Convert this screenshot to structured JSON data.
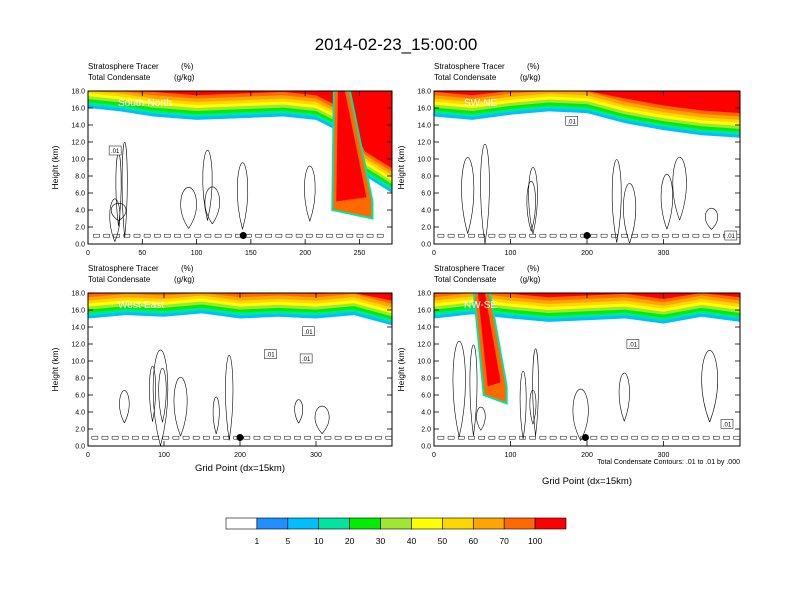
{
  "figure_title": "2014-02-23_15:00:00",
  "colorbar": {
    "levels": [
      "1",
      "5",
      "10",
      "20",
      "30",
      "40",
      "50",
      "60",
      "70",
      "100"
    ],
    "colors": [
      "#ffffff",
      "#1e90ff",
      "#00bfff",
      "#00e5a0",
      "#00ee00",
      "#a0e632",
      "#ffff00",
      "#ffd700",
      "#ffa500",
      "#ff6a00",
      "#ff0000"
    ]
  },
  "contour_info": "Total Condensate Contours: .01 to .01 by .000",
  "chart_data": [
    {
      "type": "heatmap",
      "panel": "South-North",
      "title_left_1": "Stratosphere Tracer",
      "units_1": "(%)",
      "title_left_2": "Total Condensate",
      "units_2": "(g/kg)",
      "ylabel": "Height (km)",
      "xlabel": "",
      "ylim": [
        0,
        18
      ],
      "xlim": [
        0,
        280
      ],
      "yticks": [
        "0.0",
        "2.0",
        "4.0",
        "6.0",
        "8.0",
        "10.0",
        "12.0",
        "14.0",
        "16.0",
        "18.0"
      ],
      "xticks": [
        0,
        50,
        100,
        150,
        200,
        250
      ],
      "xtick_labels": [
        "0",
        "50",
        "100",
        "150",
        "200",
        "250"
      ],
      "surface_x": [
        0,
        30,
        60,
        100,
        140,
        180,
        210,
        235,
        255,
        280
      ],
      "surface_top": [
        16.0,
        15.6,
        15.0,
        14.6,
        14.8,
        15.0,
        14.6,
        13.0,
        8.0,
        6.0
      ],
      "intrusion": {
        "x_top": 232,
        "x_bottom_left": 225,
        "x_bottom_right": 262,
        "bottom": 3.0
      },
      "contour_labels": [
        {
          "text": ".01",
          "x": 25,
          "y": 11.0
        }
      ],
      "marker": {
        "x": 143,
        "y": 1.0
      }
    },
    {
      "type": "heatmap",
      "panel": "SW-NE",
      "title_left_1": "Stratosphere Tracer",
      "units_1": "(%)",
      "title_left_2": "Total Condensate",
      "units_2": "(g/kg)",
      "ylabel": "Height (km)",
      "xlabel": "",
      "ylim": [
        0,
        18
      ],
      "xlim": [
        0,
        400
      ],
      "yticks": [
        "0.0",
        "2.0",
        "4.0",
        "6.0",
        "8.0",
        "10.0",
        "12.0",
        "14.0",
        "16.0",
        "18.0"
      ],
      "xticks": [
        0,
        100,
        200,
        300
      ],
      "xtick_labels": [
        "0",
        "100",
        "200",
        "300"
      ],
      "surface_x": [
        0,
        50,
        100,
        150,
        200,
        250,
        300,
        350,
        400
      ],
      "surface_top": [
        15.0,
        14.6,
        15.2,
        15.6,
        15.4,
        14.2,
        13.4,
        12.8,
        12.5
      ],
      "contour_labels": [
        {
          "text": ".01",
          "x": 180,
          "y": 14.5
        },
        {
          "text": ".01",
          "x": 388,
          "y": 1.0
        }
      ],
      "marker": {
        "x": 200,
        "y": 1.0
      }
    },
    {
      "type": "heatmap",
      "panel": "West-East",
      "title_left_1": "Stratosphere Tracer",
      "units_1": "(%)",
      "title_left_2": "Total Condensate",
      "units_2": "(g/kg)",
      "ylabel": "Height (km)",
      "xlabel": "Grid Point (dx=15km)",
      "ylim": [
        0,
        18
      ],
      "xlim": [
        0,
        400
      ],
      "yticks": [
        "0.0",
        "2.0",
        "4.0",
        "6.0",
        "8.0",
        "10.0",
        "12.0",
        "14.0",
        "16.0",
        "18.0"
      ],
      "xticks": [
        0,
        100,
        200,
        300
      ],
      "xtick_labels": [
        "0",
        "100",
        "200",
        "300"
      ],
      "surface_x": [
        0,
        50,
        100,
        150,
        200,
        250,
        300,
        350,
        400
      ],
      "surface_top": [
        15.0,
        15.4,
        15.2,
        15.6,
        15.0,
        15.2,
        15.0,
        15.4,
        14.2
      ],
      "contour_labels": [
        {
          "text": ".01",
          "x": 290,
          "y": 13.5
        },
        {
          "text": ".01",
          "x": 240,
          "y": 10.8
        },
        {
          "text": ".01",
          "x": 287,
          "y": 10.3
        }
      ],
      "marker": {
        "x": 200,
        "y": 1.0
      }
    },
    {
      "type": "heatmap",
      "panel": "NW-SE",
      "title_left_1": "Stratosphere Tracer",
      "units_1": "(%)",
      "title_left_2": "Total Condensate",
      "units_2": "(g/kg)",
      "ylabel": "Height (km)",
      "xlabel": "Grid Point (dx=15km)",
      "ylim": [
        0,
        18
      ],
      "xlim": [
        0,
        400
      ],
      "yticks": [
        "0.0",
        "2.0",
        "4.0",
        "6.0",
        "8.0",
        "10.0",
        "12.0",
        "14.0",
        "16.0",
        "18.0"
      ],
      "xticks": [
        0,
        100,
        200,
        300
      ],
      "xtick_labels": [
        "0",
        "100",
        "200",
        "300"
      ],
      "surface_x": [
        0,
        50,
        100,
        150,
        200,
        250,
        300,
        350,
        400
      ],
      "surface_top": [
        15.0,
        15.5,
        15.0,
        14.6,
        14.8,
        15.0,
        14.4,
        15.2,
        14.6
      ],
      "intrusion": {
        "x_top": 60,
        "x_bottom_left": 65,
        "x_bottom_right": 95,
        "bottom": 5.0
      },
      "contour_labels": [
        {
          "text": ".01",
          "x": 260,
          "y": 12.0
        },
        {
          "text": ".01",
          "x": 383,
          "y": 2.6
        }
      ],
      "marker": {
        "x": 198,
        "y": 1.0
      }
    }
  ]
}
